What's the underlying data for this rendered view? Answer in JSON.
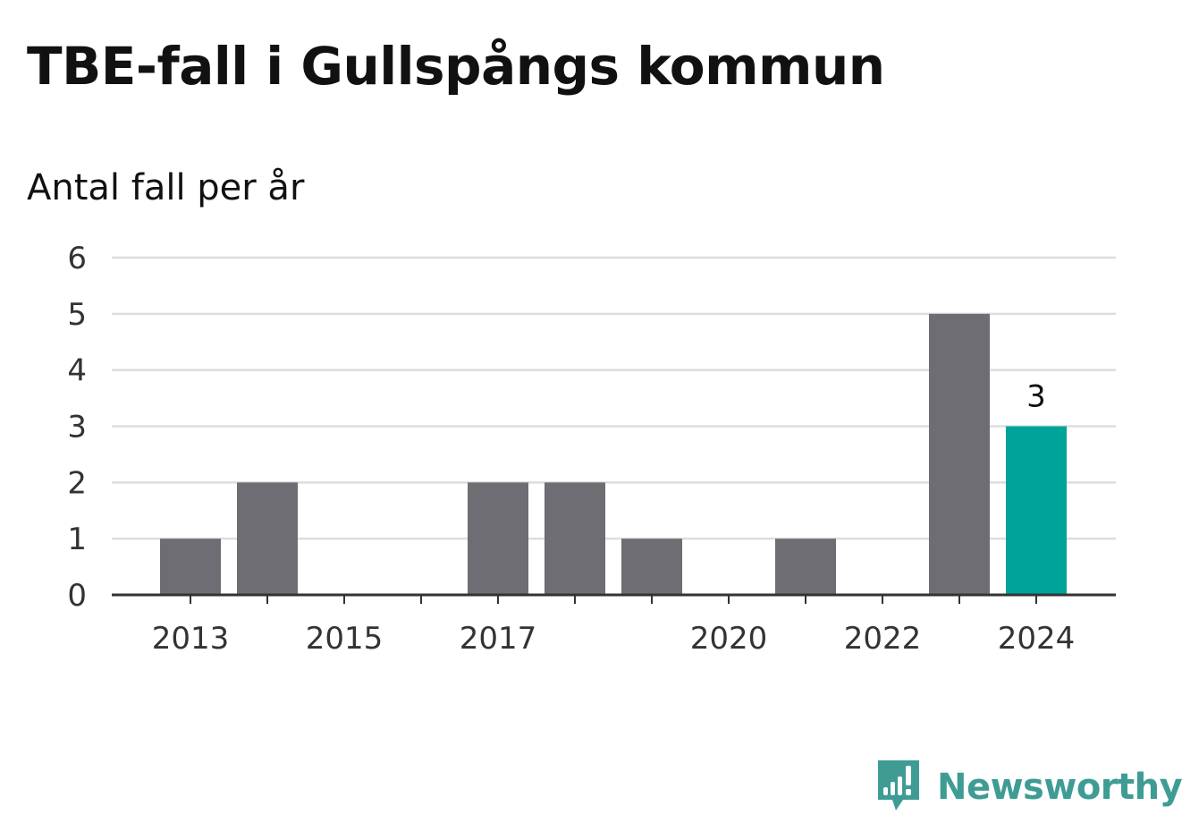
{
  "title": "TBE-fall i Gullspångs kommun",
  "subtitle": "Antal fall per år",
  "brand": {
    "name": "Newsworthy",
    "icon": "newsworthy-logo-icon",
    "color": "#3e9c94"
  },
  "colors": {
    "bar": "#6d6d73",
    "highlight": "#00a39a",
    "grid": "#dddddd",
    "axis": "#333333",
    "tick_text": "#333333",
    "label_text": "#111111"
  },
  "chart_data": {
    "type": "bar",
    "categories": [
      "2013",
      "2014",
      "2015",
      "2016",
      "2017",
      "2018",
      "2019",
      "2020",
      "2021",
      "2022",
      "2023",
      "2024"
    ],
    "values": [
      1,
      2,
      0,
      0,
      2,
      2,
      1,
      0,
      1,
      0,
      5,
      3
    ],
    "x_tick_labels": [
      "2013",
      "2015",
      "2017",
      "2020",
      "2022",
      "2024"
    ],
    "ylim": [
      0,
      6
    ],
    "y_ticks": [
      0,
      1,
      2,
      3,
      4,
      5,
      6
    ],
    "highlight_category": "2024",
    "data_labels": [
      {
        "category": "2024",
        "text": "3"
      }
    ],
    "grid": true,
    "legend": "none",
    "xlabel": "",
    "ylabel": ""
  }
}
